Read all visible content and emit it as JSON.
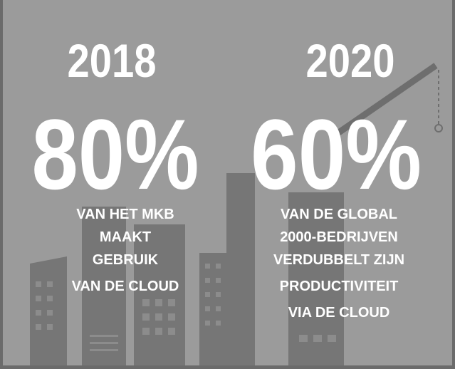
{
  "columns": [
    {
      "year": "2018",
      "percent": "80%",
      "lines": [
        "VAN HET MKB",
        "MAAKT",
        "GEBRUIK",
        "VAN DE CLOUD"
      ]
    },
    {
      "year": "2020",
      "percent": "60%",
      "lines": [
        "VAN DE GLOBAL",
        "2000-BEDRIJVEN",
        "VERDUBBELT ZIJN",
        "PRODUCTIVITEIT",
        "VIA DE CLOUD"
      ]
    }
  ]
}
